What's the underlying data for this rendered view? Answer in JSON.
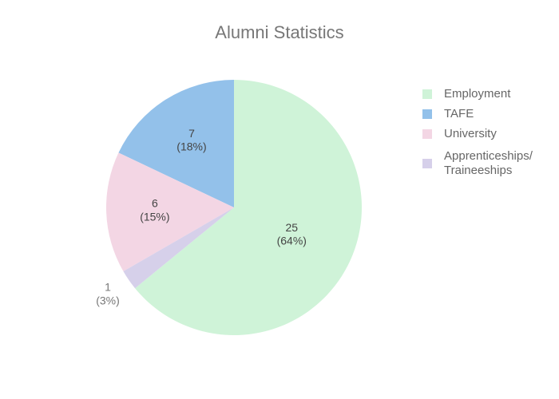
{
  "chart_data": {
    "type": "pie",
    "title": "Alumni Statistics",
    "categories": [
      "Employment",
      "TAFE",
      "University",
      "Apprenticeships/\nTraineeships"
    ],
    "values": [
      25,
      7,
      6,
      1
    ],
    "value_labels": [
      "25\n(64%)",
      "7\n(18%)",
      "6\n(15%)",
      "1\n(3%)"
    ],
    "colors": [
      "#cff3d8",
      "#93c1ea",
      "#f3d6e4",
      "#d6d0ea"
    ],
    "legend": "right"
  }
}
